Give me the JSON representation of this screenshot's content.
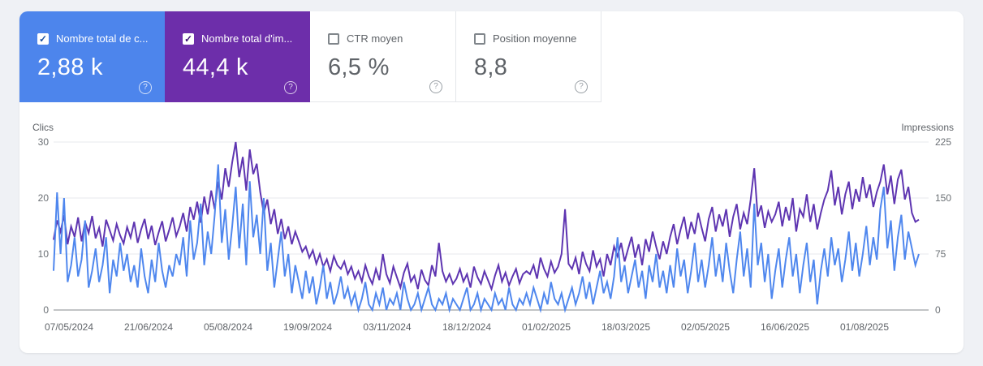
{
  "page": {
    "background": "#eff1f5",
    "panel_background": "#ffffff"
  },
  "cards": [
    {
      "label": "Nombre total de c...",
      "value": "2,88 k",
      "checked": true,
      "bg": "#4d85ec",
      "text_color": "#ffffff",
      "check_color": "#1a4fa0",
      "help_icon": "question-mark-circle"
    },
    {
      "label": "Nombre total d'im...",
      "value": "44,4 k",
      "checked": true,
      "bg": "#6d2eaa",
      "text_color": "#ffffff",
      "check_color": "#3b1070",
      "help_icon": "question-mark-circle"
    },
    {
      "label": "CTR moyen",
      "value": "6,5 %",
      "checked": false,
      "bg": "#ffffff",
      "text_color": "#5f6368",
      "label_color": "#5f6368",
      "help_icon": "question-mark-circle"
    },
    {
      "label": "Position moyenne",
      "value": "8,8",
      "checked": false,
      "bg": "#ffffff",
      "text_color": "#5f6368",
      "label_color": "#5f6368",
      "help_icon": "question-mark-circle"
    }
  ],
  "chart_data": {
    "type": "line",
    "grid": true,
    "left_axis": {
      "label": "Clics",
      "ticks": [
        30,
        20,
        10,
        0
      ],
      "max": 30,
      "color": "#5f6368"
    },
    "right_axis": {
      "label": "Impressions",
      "ticks": [
        225,
        150,
        75,
        0
      ],
      "max": 225,
      "color": "#5f6368"
    },
    "x_tick_labels": [
      "07/05/2024",
      "21/06/2024",
      "05/08/2024",
      "19/09/2024",
      "03/11/2024",
      "18/12/2024",
      "01/02/2025",
      "18/03/2025",
      "02/05/2025",
      "16/06/2025",
      "01/08/2025"
    ],
    "x_interval_days_per_point": 2,
    "series": [
      {
        "name": "Impressions",
        "axis": "right",
        "color": "#5e35b1",
        "values": [
          94,
          120,
          105,
          127,
          88,
          112,
          98,
          124,
          92,
          118,
          103,
          126,
          96,
          110,
          85,
          121,
          107,
          93,
          115,
          100,
          89,
          111,
          97,
          118,
          90,
          108,
          122,
          95,
          113,
          87,
          104,
          119,
          92,
          107,
          124,
          99,
          112,
          130,
          105,
          138,
          121,
          145,
          117,
          152,
          128,
          160,
          135,
          172,
          148,
          190,
          165,
          198,
          225,
          178,
          205,
          160,
          215,
          182,
          196,
          158,
          130,
          148,
          115,
          135,
          102,
          122,
          95,
          112,
          88,
          105,
          92,
          78,
          85,
          70,
          80,
          62,
          75,
          58,
          68,
          52,
          72,
          60,
          55,
          65,
          48,
          58,
          42,
          52,
          38,
          60,
          45,
          35,
          55,
          40,
          75,
          48,
          36,
          58,
          44,
          30,
          50,
          62,
          38,
          46,
          28,
          54,
          40,
          33,
          60,
          45,
          90,
          52,
          38,
          48,
          35,
          42,
          55,
          38,
          48,
          30,
          58,
          44,
          35,
          52,
          40,
          28,
          46,
          60,
          38,
          50,
          33,
          45,
          55,
          36,
          48,
          52,
          48,
          60,
          42,
          70,
          55,
          45,
          65,
          50,
          58,
          75,
          135,
          62,
          55,
          70,
          48,
          78,
          62,
          52,
          80,
          58,
          68,
          45,
          75,
          60,
          85,
          72,
          90,
          65,
          82,
          98,
          70,
          88,
          60,
          95,
          78,
          105,
          85,
          68,
          92,
          75,
          98,
          115,
          88,
          108,
          125,
          95,
          118,
          102,
          130,
          110,
          92,
          122,
          138,
          105,
          128,
          112,
          135,
          98,
          125,
          142,
          108,
          130,
          115,
          148,
          190,
          125,
          140,
          110,
          132,
          118,
          128,
          145,
          112,
          138,
          120,
          150,
          105,
          135,
          125,
          155,
          118,
          142,
          108,
          130,
          148,
          160,
          187,
          140,
          165,
          128,
          155,
          172,
          135,
          162,
          145,
          178,
          150,
          168,
          138,
          158,
          172,
          195,
          155,
          180,
          142,
          175,
          188,
          148,
          165,
          130,
          118,
          121
        ]
      },
      {
        "name": "Clics",
        "axis": "left",
        "color": "#4f87ee",
        "values": [
          7,
          21,
          10,
          20,
          5,
          8,
          13,
          6,
          9,
          16,
          4,
          7,
          11,
          5,
          8,
          13,
          3,
          9,
          6,
          12,
          7,
          10,
          5,
          8,
          4,
          11,
          6,
          3,
          9,
          5,
          12,
          7,
          4,
          8,
          6,
          10,
          8,
          13,
          6,
          16,
          9,
          12,
          19,
          8,
          14,
          10,
          17,
          26,
          12,
          18,
          9,
          15,
          22,
          11,
          19,
          8,
          23,
          13,
          17,
          10,
          20,
          7,
          12,
          4,
          9,
          14,
          6,
          10,
          3,
          8,
          5,
          2,
          7,
          3,
          6,
          1,
          4,
          8,
          2,
          5,
          1,
          3,
          6,
          2,
          4,
          1,
          3,
          0,
          2,
          5,
          1,
          0,
          3,
          1,
          4,
          0,
          2,
          1,
          3,
          0,
          5,
          2,
          0,
          1,
          3,
          0,
          2,
          4,
          1,
          0,
          2,
          1,
          3,
          0,
          2,
          1,
          0,
          2,
          4,
          0,
          1,
          3,
          0,
          2,
          1,
          0,
          3,
          1,
          2,
          0,
          4,
          1,
          0,
          2,
          1,
          3,
          1,
          4,
          2,
          0,
          3,
          1,
          5,
          2,
          1,
          3,
          0,
          2,
          4,
          1,
          3,
          6,
          2,
          5,
          1,
          4,
          7,
          3,
          5,
          2,
          6,
          13,
          5,
          8,
          3,
          6,
          9,
          4,
          7,
          2,
          8,
          5,
          10,
          4,
          7,
          3,
          8,
          4,
          11,
          6,
          9,
          3,
          7,
          12,
          5,
          9,
          4,
          8,
          13,
          6,
          10,
          5,
          12,
          7,
          3,
          9,
          14,
          6,
          11,
          4,
          19,
          8,
          12,
          5,
          10,
          2,
          7,
          11,
          4,
          9,
          13,
          6,
          10,
          3,
          8,
          12,
          5,
          9,
          1,
          7,
          11,
          6,
          13,
          8,
          11,
          5,
          9,
          14,
          7,
          12,
          6,
          10,
          15,
          8,
          13,
          9,
          18,
          22,
          11,
          16,
          7,
          13,
          17,
          9,
          14,
          11,
          8,
          10
        ]
      }
    ]
  }
}
